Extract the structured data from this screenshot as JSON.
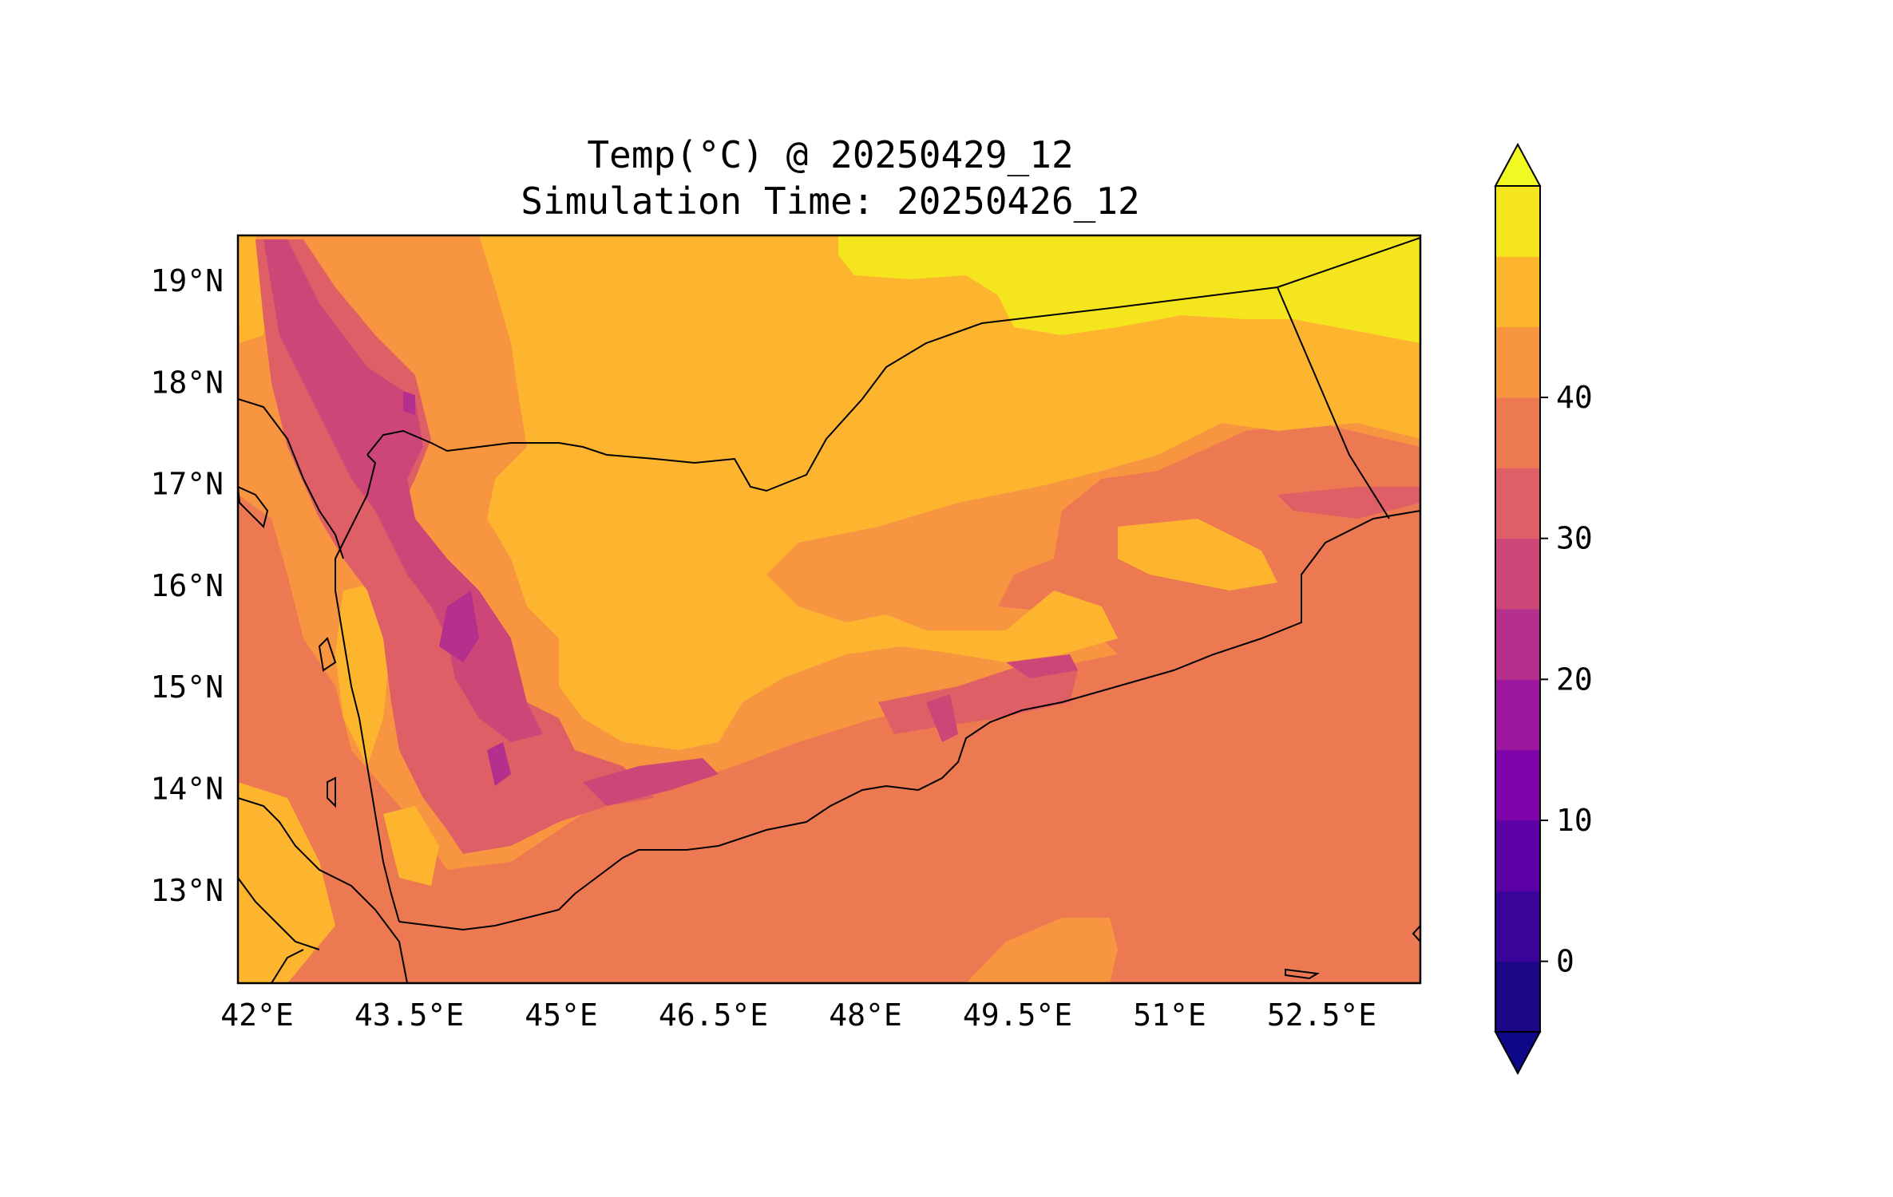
{
  "title": {
    "line1": "Temp(°C) @ 20250429_12",
    "line2": "Simulation Time: 20250426_12"
  },
  "map": {
    "lon_ticks": [
      "42°E",
      "43.5°E",
      "45°E",
      "46.5°E",
      "48°E",
      "49.5°E",
      "51°E",
      "52.5°E"
    ],
    "lat_ticks": [
      "19°N",
      "18°N",
      "17°N",
      "16°N",
      "15°N",
      "14°N",
      "13°N"
    ]
  },
  "colorbar": {
    "tick_labels": [
      "0",
      "10",
      "20",
      "30",
      "40"
    ],
    "colors": [
      "#1b0887",
      "#3a049a",
      "#5c01a6",
      "#7e03a8",
      "#9c179e",
      "#b52f8c",
      "#cc4778",
      "#de5f65",
      "#ed7953",
      "#f89540",
      "#fdb42f",
      "#fbd524",
      "#f0f921",
      "#0d0887"
    ],
    "extend": "both"
  },
  "palette": {
    "t20": "#cc4778",
    "t25": "#de5f65",
    "t30": "#ed7953",
    "t35": "#f89540",
    "t40": "#fdb42f",
    "t45": "#f5e51f",
    "t15": "#b52f8c"
  }
}
